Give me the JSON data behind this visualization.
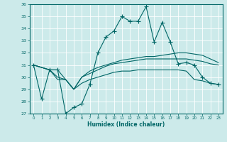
{
  "xlabel": "Humidex (Indice chaleur)",
  "bg_color": "#cceaea",
  "grid_color": "#aad4d4",
  "line_color": "#006666",
  "xlim": [
    -0.5,
    23.5
  ],
  "ylim": [
    27,
    36
  ],
  "yticks": [
    27,
    28,
    29,
    30,
    31,
    32,
    33,
    34,
    35,
    36
  ],
  "xticks": [
    0,
    1,
    2,
    3,
    4,
    5,
    6,
    7,
    8,
    9,
    10,
    11,
    12,
    13,
    14,
    15,
    16,
    17,
    18,
    19,
    20,
    21,
    22,
    23
  ],
  "line1_x": [
    0,
    1,
    2,
    3,
    4,
    5,
    6,
    7,
    8,
    9,
    10,
    11,
    12,
    13,
    14,
    15,
    16,
    17,
    18,
    19,
    20,
    21,
    22,
    23
  ],
  "line1_y": [
    31.0,
    28.2,
    30.6,
    30.6,
    27.0,
    27.5,
    27.8,
    29.4,
    32.0,
    33.3,
    33.8,
    35.0,
    34.6,
    34.6,
    35.8,
    32.9,
    34.5,
    32.9,
    31.1,
    31.2,
    31.0,
    30.0,
    29.5,
    29.4
  ],
  "line2_x": [
    0,
    2,
    3,
    4,
    5,
    6,
    7,
    8,
    9,
    10,
    11,
    12,
    13,
    14,
    15,
    16,
    17,
    18,
    19,
    20,
    21,
    22,
    23
  ],
  "line2_y": [
    31.0,
    30.6,
    30.0,
    29.8,
    29.0,
    30.0,
    30.5,
    30.8,
    31.0,
    31.2,
    31.4,
    31.5,
    31.6,
    31.7,
    31.7,
    31.8,
    31.9,
    32.0,
    32.0,
    31.9,
    31.8,
    31.5,
    31.2
  ],
  "line3_x": [
    0,
    2,
    3,
    4,
    5,
    6,
    7,
    8,
    9,
    10,
    11,
    12,
    13,
    14,
    15,
    16,
    17,
    18,
    19,
    20,
    21,
    22,
    23
  ],
  "line3_y": [
    31.0,
    30.6,
    30.6,
    29.8,
    29.0,
    29.5,
    29.8,
    30.0,
    30.2,
    30.4,
    30.5,
    30.5,
    30.6,
    30.6,
    30.6,
    30.6,
    30.6,
    30.6,
    30.5,
    29.8,
    29.7,
    29.5,
    29.4
  ],
  "line4_x": [
    0,
    2,
    3,
    4,
    5,
    6,
    7,
    8,
    9,
    10,
    11,
    12,
    13,
    14,
    15,
    16,
    17,
    18,
    19,
    20,
    21,
    22,
    23
  ],
  "line4_y": [
    31.0,
    30.6,
    29.8,
    29.8,
    29.0,
    30.0,
    30.3,
    30.6,
    30.9,
    31.1,
    31.2,
    31.3,
    31.4,
    31.5,
    31.5,
    31.5,
    31.5,
    31.5,
    31.5,
    31.4,
    31.3,
    31.1,
    31.0
  ]
}
